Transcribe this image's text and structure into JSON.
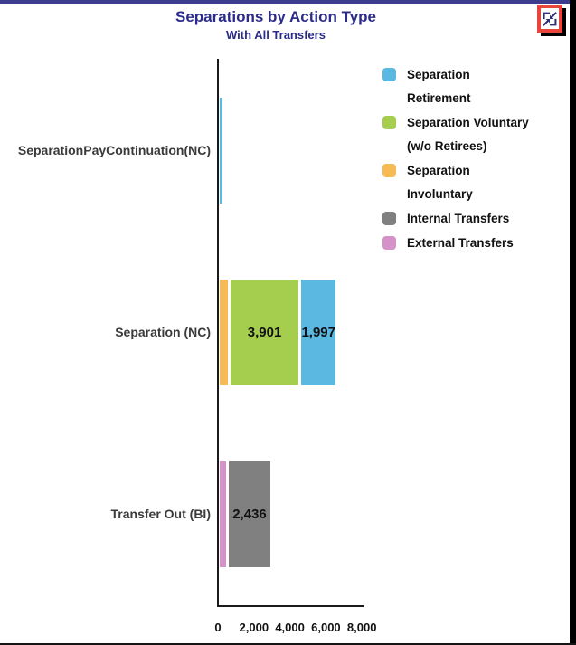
{
  "chart_data": {
    "type": "bar",
    "orientation": "horizontal",
    "title": "Separations by Action Type",
    "subtitle": "With All Transfers",
    "categories": [
      "SeparationPayContinuation(NC)",
      "Separation (NC)",
      "Transfer Out (BI)"
    ],
    "x_axis": {
      "values": [
        0,
        2000,
        4000,
        6000,
        8000
      ],
      "labels": [
        "0",
        "2,000",
        "4,000",
        "6,000",
        "8,000"
      ],
      "min": 0,
      "max": 8000
    },
    "rows": [
      {
        "category": "SeparationPayContinuation(NC)",
        "segments": [
          {
            "series": "Separation Retirement",
            "value": 150,
            "label": "",
            "estimated": true
          }
        ]
      },
      {
        "category": "Separation (NC)",
        "segments": [
          {
            "series": "Separation Involuntary",
            "value": 540,
            "label": "",
            "estimated": true
          },
          {
            "series": "Separation Voluntary (w/o Retirees)",
            "value": 3901,
            "label": "3,901"
          },
          {
            "series": "Separation Retirement",
            "value": 1997,
            "label": "1,997"
          }
        ]
      },
      {
        "category": "Transfer Out (BI)",
        "segments": [
          {
            "series": "External Transfers",
            "value": 440,
            "label": "",
            "estimated": true
          },
          {
            "series": "Internal Transfers",
            "value": 2436,
            "label": "2,436"
          }
        ]
      }
    ],
    "legend": [
      {
        "series": "Separation Retirement",
        "lines": [
          "Separation",
          "Retirement"
        ],
        "color": "#5bb8e0"
      },
      {
        "series": "Separation Voluntary (w/o Retirees)",
        "lines": [
          "Separation Voluntary",
          "(w/o Retirees)"
        ],
        "color": "#a6ce4e"
      },
      {
        "series": "Separation Involuntary",
        "lines": [
          "Separation",
          "Involuntary"
        ],
        "color": "#f6bb54"
      },
      {
        "series": "Internal Transfers",
        "lines": [
          "Internal Transfers"
        ],
        "color": "#808080"
      },
      {
        "series": "External Transfers",
        "lines": [
          "External Transfers"
        ],
        "color": "#d492c8"
      }
    ],
    "legend_position": "right",
    "grid": false
  },
  "colors": {
    "title_text": "#2b2b8a",
    "top_bar": "#3d3d8f",
    "window_edge": "#000000",
    "axis_line": "#1a1a1a",
    "category_text": "#3a3a3a",
    "highlight_red": "#e8453c",
    "icon_glyph": "#2e2e75"
  },
  "icons": {
    "collapse_button": "collapse-diagonal-arrows-icon"
  }
}
